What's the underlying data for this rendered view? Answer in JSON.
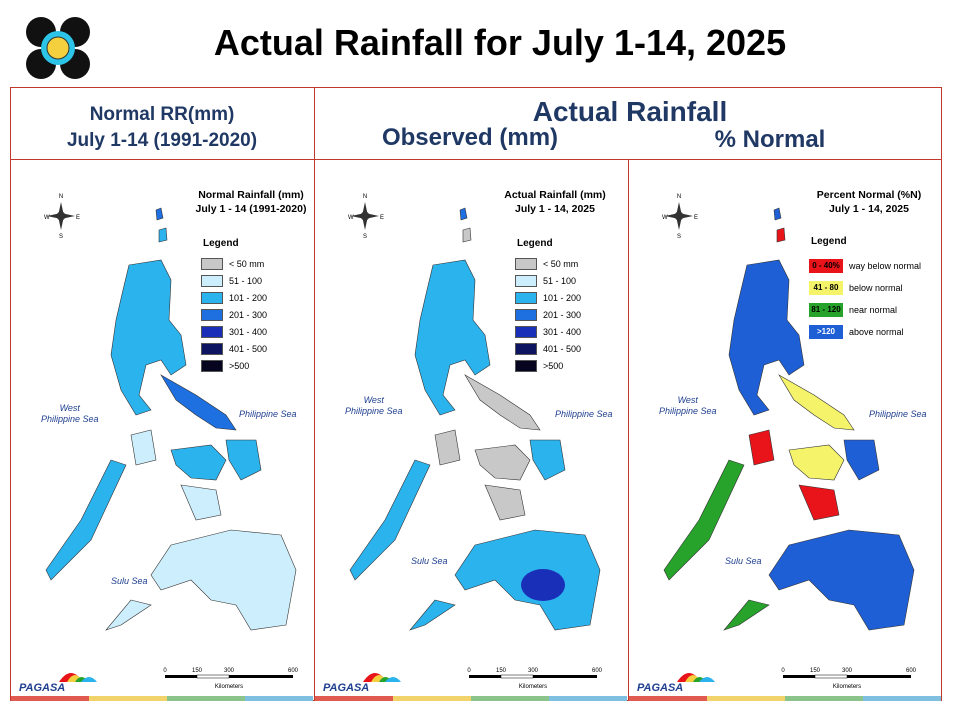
{
  "title": "Actual Rainfall for July 1-14, 2025",
  "header": {
    "left_line1": "Normal RR(mm)",
    "left_line2": "July 1-14 (1991-2020)",
    "actual": "Actual Rainfall",
    "observed": "Observed (mm)",
    "percent": "% Normal"
  },
  "panels": [
    {
      "title1": "Normal Rainfall (mm)",
      "title2": "July 1 - 14 (1991-2020)"
    },
    {
      "title1": "Actual Rainfall (mm)",
      "title2": "July 1 - 14, 2025"
    },
    {
      "title1": "Percent Normal (%N)",
      "title2": "July 1 - 14, 2025"
    }
  ],
  "legend_title": "Legend",
  "rain_legend": [
    {
      "label": "< 50 mm",
      "color": "#c8c8c8"
    },
    {
      "label": "51 - 100",
      "color": "#cdeefc"
    },
    {
      "label": "101 - 200",
      "color": "#2bb3ee"
    },
    {
      "label": "201 - 300",
      "color": "#1e6fe0"
    },
    {
      "label": "301 - 400",
      "color": "#1a2fb8"
    },
    {
      "label": "401 - 500",
      "color": "#0d1560"
    },
    {
      "label": ">500",
      "color": "#050520"
    }
  ],
  "pct_legend": [
    {
      "range": "0 - 40%",
      "label": "way below normal",
      "color": "#e8141a"
    },
    {
      "range": "41 - 80",
      "label": "below normal",
      "color": "#f4f36a"
    },
    {
      "range": "81 - 120",
      "label": "near normal",
      "color": "#27a22a"
    },
    {
      "range": ">120",
      "label": "above normal",
      "color": "#1f5fd6"
    }
  ],
  "seas": {
    "west": "West\nPhilippine Sea",
    "west_line1": "West",
    "west_line2": "Philippine Sea",
    "east": "Philippine Sea",
    "sulu": "Sulu Sea"
  },
  "compass": {
    "n": "N",
    "s": "S",
    "e": "E",
    "w": "W"
  },
  "scale": {
    "ticks": [
      "0",
      "150",
      "300",
      "600"
    ],
    "unit": "Kilometers"
  },
  "agency": "PAGASA"
}
